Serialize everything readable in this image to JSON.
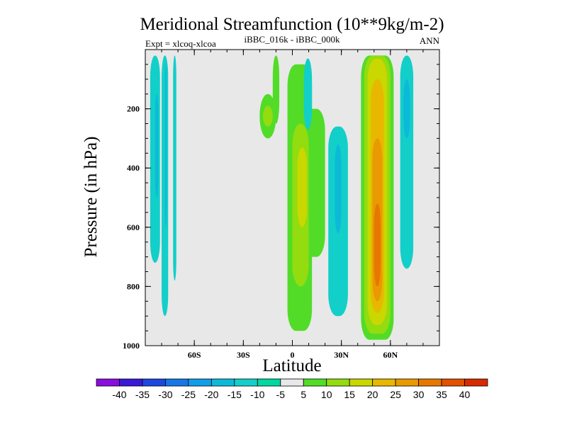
{
  "chart_data": {
    "type": "contour",
    "title": "Meridional Streamfunction (10**9kg/m-2)",
    "subtitle": "iBBC_016k - iBBC_000k",
    "left_annotation": "Expt = xlcoq-xlcoa",
    "right_annotation": "ANN",
    "xlabel": "Latitude",
    "ylabel": "Pressure (in hPa)",
    "xlim": [
      -90,
      90
    ],
    "ylim": [
      1000,
      0
    ],
    "x_ticks": [
      -60,
      -30,
      0,
      30,
      60
    ],
    "x_tick_labels": [
      "60S",
      "30S",
      "0",
      "30N",
      "60N"
    ],
    "y_ticks": [
      200,
      400,
      600,
      800,
      1000
    ],
    "y_tick_labels": [
      "200",
      "400",
      "600",
      "800",
      "1000"
    ],
    "contour_levels": [
      -40,
      -35,
      -30,
      -25,
      -20,
      -15,
      -10,
      -5,
      5,
      10,
      15,
      20,
      25,
      30,
      35,
      40
    ],
    "colorbar_labels": [
      "-40",
      "-35",
      "-30",
      "-25",
      "-20",
      "-15",
      "-10",
      "-5",
      "5",
      "10",
      "15",
      "20",
      "25",
      "30",
      "35",
      "40"
    ],
    "colorbar_colors": [
      "#8a0ee0",
      "#3a18d8",
      "#1e46e0",
      "#1676e6",
      "#109ee8",
      "#0cbad8",
      "#12cfc9",
      "#00d8a0",
      "#e8e8e8",
      "#52dc28",
      "#92dc10",
      "#c8d800",
      "#e8b800",
      "#e89a00",
      "#e67800",
      "#e25000",
      "#d82a00"
    ],
    "cells": [
      {
        "lat": [
          -87,
          -81
        ],
        "p": [
          20,
          720
        ],
        "level": -10
      },
      {
        "lat": [
          -80,
          -76
        ],
        "p": [
          20,
          900
        ],
        "level": -10
      },
      {
        "lat": [
          -84,
          -82
        ],
        "p": [
          150,
          500
        ],
        "level": -15
      },
      {
        "lat": [
          -78,
          -77
        ],
        "p": [
          50,
          600
        ],
        "level": -15
      },
      {
        "lat": [
          -73,
          -71
        ],
        "p": [
          20,
          780
        ],
        "level": -10
      },
      {
        "lat": [
          -20,
          -10
        ],
        "p": [
          150,
          300
        ],
        "level": 10
      },
      {
        "lat": [
          -18,
          -12
        ],
        "p": [
          190,
          260
        ],
        "level": 15
      },
      {
        "lat": [
          -12,
          -8
        ],
        "p": [
          20,
          250
        ],
        "level": 10
      },
      {
        "lat": [
          -3,
          12
        ],
        "p": [
          50,
          950
        ],
        "level": 10
      },
      {
        "lat": [
          4,
          20
        ],
        "p": [
          200,
          700
        ],
        "level": 10
      },
      {
        "lat": [
          0,
          10
        ],
        "p": [
          250,
          800
        ],
        "level": 15
      },
      {
        "lat": [
          3,
          9
        ],
        "p": [
          330,
          600
        ],
        "level": 20
      },
      {
        "lat": [
          7,
          12
        ],
        "p": [
          30,
          270
        ],
        "level": -10
      },
      {
        "lat": [
          22,
          34
        ],
        "p": [
          260,
          900
        ],
        "level": -10
      },
      {
        "lat": [
          26,
          30
        ],
        "p": [
          320,
          620
        ],
        "level": -15
      },
      {
        "lat": [
          42,
          62
        ],
        "p": [
          20,
          980
        ],
        "level": 10
      },
      {
        "lat": [
          44,
          60
        ],
        "p": [
          20,
          960
        ],
        "level": 15
      },
      {
        "lat": [
          46,
          58
        ],
        "p": [
          30,
          930
        ],
        "level": 20
      },
      {
        "lat": [
          48,
          56
        ],
        "p": [
          100,
          890
        ],
        "level": 25
      },
      {
        "lat": [
          49,
          55
        ],
        "p": [
          300,
          850
        ],
        "level": 30
      },
      {
        "lat": [
          50,
          54
        ],
        "p": [
          520,
          800
        ],
        "level": 35
      },
      {
        "lat": [
          66,
          74
        ],
        "p": [
          20,
          740
        ],
        "level": -10
      },
      {
        "lat": [
          68,
          72
        ],
        "p": [
          100,
          300
        ],
        "level": -15
      }
    ]
  }
}
